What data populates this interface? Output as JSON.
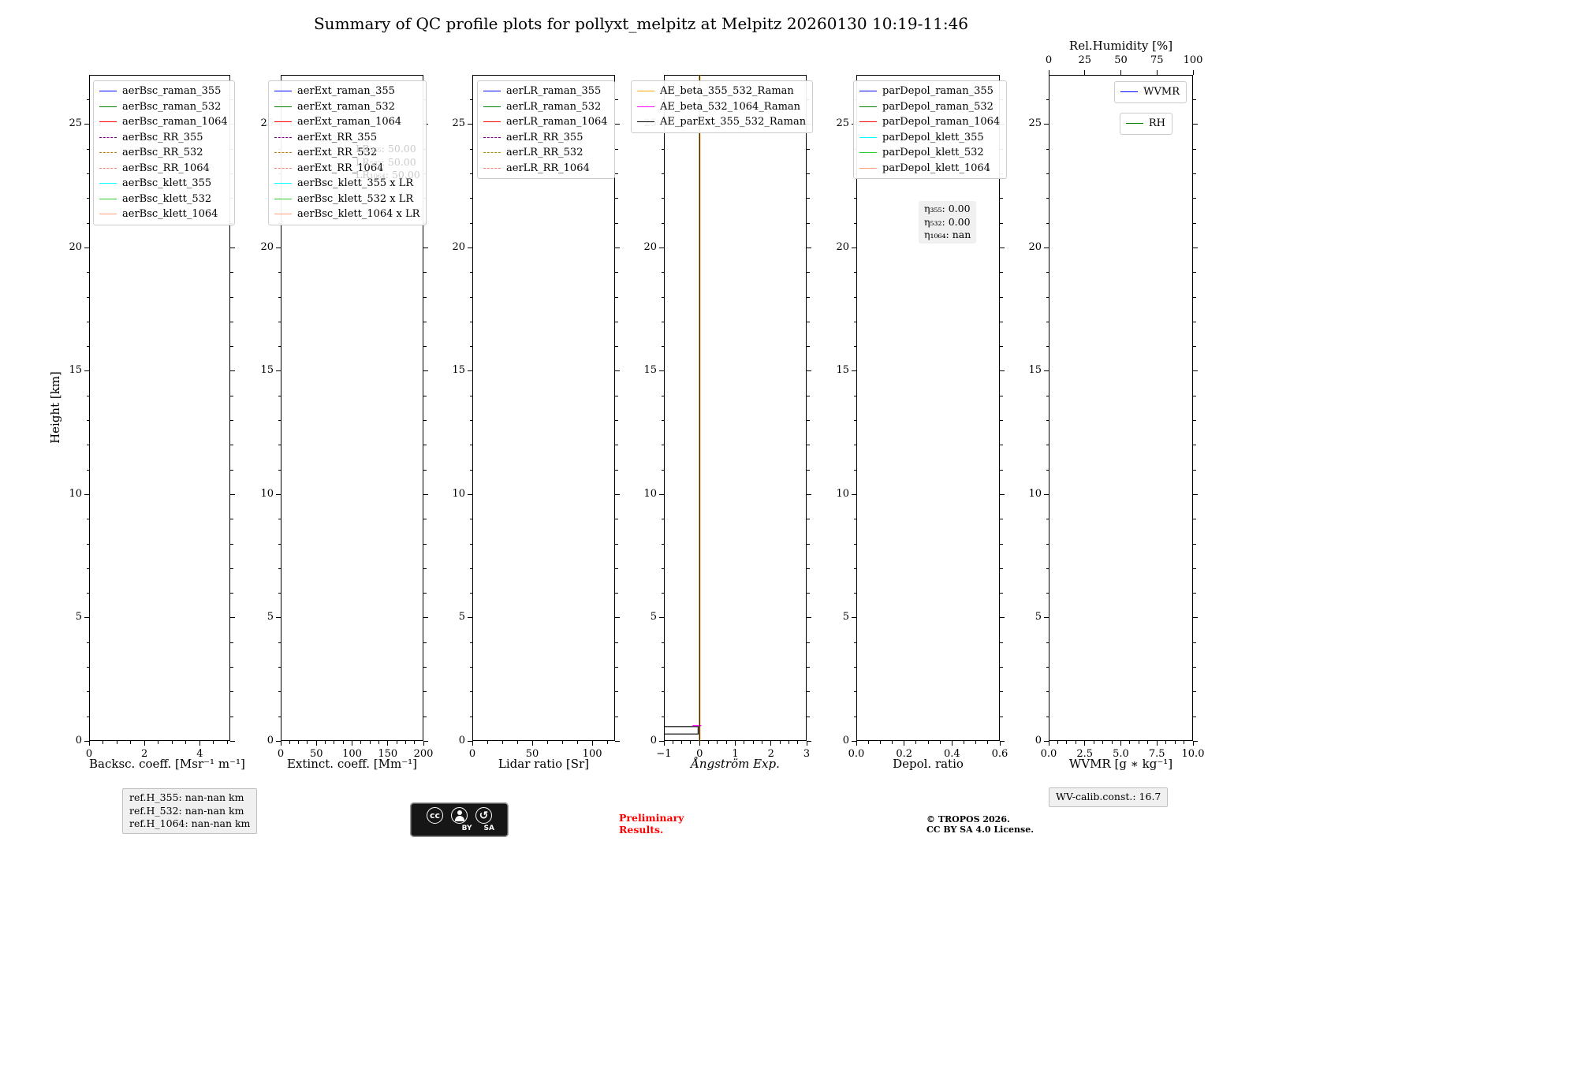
{
  "title": "Summary of QC profile plots for pollyxt_melpitz at Melpitz 20260130 10:19-11:46",
  "ylabel": "Height [km]",
  "chart_data": [
    {
      "name": "backscatter",
      "type": "line",
      "xlabel": "Backsc. coeff. [Msr⁻¹ m⁻¹]",
      "xlim": [
        0,
        5.1
      ],
      "xticks": {
        "values": [
          0,
          2,
          4
        ],
        "labels": [
          "0",
          "2",
          "4"
        ]
      },
      "ylim": [
        0,
        27
      ],
      "yticks": {
        "values": [
          0,
          5,
          10,
          15,
          20,
          25
        ],
        "labels": [
          "0",
          "5",
          "10",
          "15",
          "20",
          "25"
        ]
      },
      "legend": [
        {
          "label": "aerBsc_raman_355",
          "color": "#0000ff",
          "dash": false
        },
        {
          "label": "aerBsc_raman_532",
          "color": "#008000",
          "dash": false
        },
        {
          "label": "aerBsc_raman_1064",
          "color": "#ff0000",
          "dash": false
        },
        {
          "label": "aerBsc_RR_355",
          "color": "#800080",
          "dash": true
        },
        {
          "label": "aerBsc_RR_532",
          "color": "#b8860b",
          "dash": true
        },
        {
          "label": "aerBsc_RR_1064",
          "color": "#fa8072",
          "dash": true
        },
        {
          "label": "aerBsc_klett_355",
          "color": "#00ffff",
          "dash": false
        },
        {
          "label": "aerBsc_klett_532",
          "color": "#32cd32",
          "dash": false
        },
        {
          "label": "aerBsc_klett_1064",
          "color": "#ffa07a",
          "dash": false
        }
      ],
      "series": []
    },
    {
      "name": "extinction",
      "type": "line",
      "xlabel": "Extinct. coeff. [Mm⁻¹]",
      "xlim": [
        0,
        200
      ],
      "xticks": {
        "values": [
          0,
          50,
          100,
          150,
          200
        ],
        "labels": [
          "0",
          "50",
          "100",
          "150",
          "200"
        ]
      },
      "ylim": [
        0,
        27
      ],
      "yticks": {
        "values": [
          0,
          5,
          10,
          15,
          20,
          25
        ],
        "labels": [
          "0",
          "5",
          "10",
          "15",
          "20",
          "25"
        ]
      },
      "legend": [
        {
          "label": "aerExt_raman_355",
          "color": "#0000ff",
          "dash": false
        },
        {
          "label": "aerExt_raman_532",
          "color": "#008000",
          "dash": false
        },
        {
          "label": "aerExt_raman_1064",
          "color": "#ff0000",
          "dash": false
        },
        {
          "label": "aerExt_RR_355",
          "color": "#800080",
          "dash": true
        },
        {
          "label": "aerExt_RR_532",
          "color": "#b8860b",
          "dash": true
        },
        {
          "label": "aerExt_RR_1064",
          "color": "#fa8072",
          "dash": true
        },
        {
          "label": "aerBsc_klett_355 x LR",
          "color": "#00ffff",
          "dash": false
        },
        {
          "label": "aerBsc_klett_532 x LR",
          "color": "#32cd32",
          "dash": false
        },
        {
          "label": "aerBsc_klett_1064 x LR",
          "color": "#ffa07a",
          "dash": false
        }
      ],
      "annotations": [
        {
          "x": 95,
          "y": 86,
          "color": "#cbcbcb",
          "box": false,
          "lines": [
            "LR₃₅₅: 50.00",
            "LR₅₃₂: 50.00",
            "LR₁₀₆₄: 50.00"
          ]
        }
      ],
      "series": []
    },
    {
      "name": "lidar-ratio",
      "type": "line",
      "xlabel": "Lidar ratio [Sr]",
      "xlim": [
        0,
        119
      ],
      "xticks": {
        "values": [
          0,
          50,
          100
        ],
        "labels": [
          "0",
          "50",
          "100"
        ]
      },
      "ylim": [
        0,
        27
      ],
      "yticks": {
        "values": [
          0,
          5,
          10,
          15,
          20,
          25
        ],
        "labels": [
          "0",
          "5",
          "10",
          "15",
          "20",
          "25"
        ]
      },
      "legend": [
        {
          "label": "aerLR_raman_355",
          "color": "#0000ff",
          "dash": false
        },
        {
          "label": "aerLR_raman_532",
          "color": "#008000",
          "dash": false
        },
        {
          "label": "aerLR_raman_1064",
          "color": "#ff0000",
          "dash": false
        },
        {
          "label": "aerLR_RR_355",
          "color": "#800080",
          "dash": true
        },
        {
          "label": "aerLR_RR_532",
          "color": "#b8860b",
          "dash": true
        },
        {
          "label": "aerLR_RR_1064",
          "color": "#fa8072",
          "dash": true
        }
      ],
      "series": []
    },
    {
      "name": "angstroem",
      "type": "line",
      "xlabel": "Ångström Exp.",
      "xlabel_style": "italic",
      "xlim": [
        -1,
        3
      ],
      "xticks": {
        "values": [
          -1,
          0,
          1,
          2,
          3
        ],
        "labels": [
          "−1",
          "0",
          "1",
          "2",
          "3"
        ]
      },
      "ylim": [
        0,
        27
      ],
      "yticks": {
        "values": [
          0,
          5,
          10,
          15,
          20,
          25
        ],
        "labels": [
          "0",
          "5",
          "10",
          "15",
          "20",
          "25"
        ]
      },
      "legend": [
        {
          "label": "AE_beta_355_532_Raman",
          "color": "#ffa500",
          "dash": false
        },
        {
          "label": "AE_beta_532_1064_Raman",
          "color": "#ff00ff",
          "dash": false
        },
        {
          "label": "AE_parExt_355_532_Raman",
          "color": "#000000",
          "dash": false
        }
      ],
      "series": [
        {
          "name": "AE_beta_355_532_Raman_zero",
          "color": "#ffa500",
          "width": 2,
          "points": [
            [
              0,
              0
            ],
            [
              0,
              27
            ]
          ]
        },
        {
          "name": "AE_parExt_355_532_Raman_low",
          "color": "#000000",
          "width": 1.2,
          "points": [
            [
              -1,
              0.28
            ],
            [
              -0.04,
              0.28
            ],
            [
              -0.04,
              0.58
            ],
            [
              -1,
              0.58
            ]
          ]
        },
        {
          "name": "AE_beta_532_1064_Raman_low",
          "color": "#ff00ff",
          "width": 1.2,
          "points": [
            [
              -0.2,
              0.62
            ],
            [
              0.05,
              0.62
            ]
          ]
        },
        {
          "name": "AE_parExt_355_532_Raman_zero",
          "color": "#000000",
          "width": 1,
          "points": [
            [
              0,
              0
            ],
            [
              0,
              27
            ]
          ]
        }
      ]
    },
    {
      "name": "depol",
      "type": "line",
      "xlabel": "Depol. ratio",
      "xlim": [
        0,
        0.6
      ],
      "xticks": {
        "values": [
          0,
          0.2,
          0.4,
          0.6
        ],
        "labels": [
          "0.0",
          "0.2",
          "0.4",
          "0.6"
        ]
      },
      "ylim": [
        0,
        27
      ],
      "yticks": {
        "values": [
          0,
          5,
          10,
          15,
          20,
          25
        ],
        "labels": [
          "0",
          "5",
          "10",
          "15",
          "20",
          "25"
        ]
      },
      "legend": [
        {
          "label": "parDepol_raman_355",
          "color": "#0000ff",
          "dash": false
        },
        {
          "label": "parDepol_raman_532",
          "color": "#008000",
          "dash": false
        },
        {
          "label": "parDepol_raman_1064",
          "color": "#ff0000",
          "dash": false
        },
        {
          "label": "parDepol_klett_355",
          "color": "#00ffff",
          "dash": false
        },
        {
          "label": "parDepol_klett_532",
          "color": "#32cd32",
          "dash": false
        },
        {
          "label": "parDepol_klett_1064",
          "color": "#ffa07a",
          "dash": false
        }
      ],
      "annotations": [
        {
          "x": 79,
          "y": 160,
          "color": "#000000",
          "box": true,
          "lines": [
            "η₃₅₅: 0.00",
            "η₅₃₂: 0.00",
            "η₁₀₆₄: nan"
          ]
        }
      ],
      "series": []
    },
    {
      "name": "wvmr",
      "type": "line",
      "xlabel": "WVMR [g ∗ kg⁻¹]",
      "xlim": [
        0,
        10
      ],
      "xticks": {
        "values": [
          0,
          2.5,
          5,
          7.5,
          10
        ],
        "labels": [
          "0.0",
          "2.5",
          "5.0",
          "7.5",
          "10.0"
        ]
      },
      "ylim": [
        0,
        27
      ],
      "yticks": {
        "values": [
          0,
          5,
          10,
          15,
          20,
          25
        ],
        "labels": [
          "0",
          "5",
          "10",
          "15",
          "20",
          "25"
        ]
      },
      "top_axis": {
        "label": "Rel.Humidity [%]",
        "lim": [
          0,
          100
        ],
        "ticks": {
          "values": [
            0,
            25,
            50,
            75,
            100
          ],
          "labels": [
            "0",
            "25",
            "50",
            "75",
            "100"
          ]
        }
      },
      "legend": [
        {
          "label": "WVMR",
          "color": "#0000ff",
          "dash": false
        }
      ],
      "legend2": [
        {
          "label": "RH",
          "color": "#008000",
          "dash": false
        }
      ],
      "series": []
    }
  ],
  "footer": {
    "ref_lines": [
      "ref.H_355: nan-nan km",
      "ref.H_532: nan-nan km",
      "ref.H_1064: nan-nan km"
    ],
    "preliminary": [
      "Preliminary",
      "Results."
    ],
    "copyright": [
      "© TROPOS 2026.",
      "CC BY SA 4.0 License."
    ],
    "wv_calib": "WV-calib.const.: 16.7",
    "cc_badge": {
      "cc": "cc",
      "by": "BY",
      "sa": "SA",
      "sa_icon": "↺"
    }
  }
}
